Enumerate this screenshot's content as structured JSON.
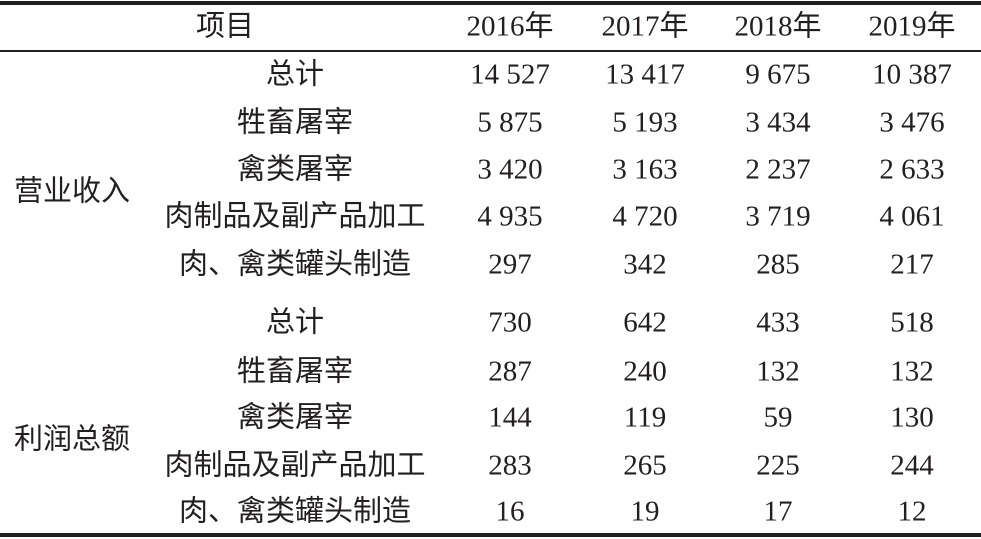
{
  "header": {
    "item": "项目",
    "years": [
      "2016年",
      "2017年",
      "2018年",
      "2019年"
    ]
  },
  "groups": [
    {
      "label": "营业收入",
      "rows": [
        {
          "item": "总计",
          "values": [
            "14 527",
            "13 417",
            "9 675",
            "10 387"
          ]
        },
        {
          "item": "牲畜屠宰",
          "values": [
            "5 875",
            "5 193",
            "3 434",
            "3 476"
          ]
        },
        {
          "item": "禽类屠宰",
          "values": [
            "3 420",
            "3 163",
            "2 237",
            "2 633"
          ]
        },
        {
          "item": "肉制品及副产品加工",
          "values": [
            "4 935",
            "4 720",
            "3 719",
            "4 061"
          ]
        },
        {
          "item": "肉、禽类罐头制造",
          "values": [
            "297",
            "342",
            "285",
            "217"
          ]
        }
      ]
    },
    {
      "label": "利润总额",
      "rows": [
        {
          "item": "总计",
          "values": [
            "730",
            "642",
            "433",
            "518"
          ]
        },
        {
          "item": "牲畜屠宰",
          "values": [
            "287",
            "240",
            "132",
            "132"
          ]
        },
        {
          "item": "禽类屠宰",
          "values": [
            "144",
            "119",
            "59",
            "130"
          ]
        },
        {
          "item": "肉制品及副产品加工",
          "values": [
            "283",
            "265",
            "225",
            "244"
          ]
        },
        {
          "item": "肉、禽类罐头制造",
          "values": [
            "16",
            "19",
            "17",
            "12"
          ]
        }
      ]
    }
  ]
}
